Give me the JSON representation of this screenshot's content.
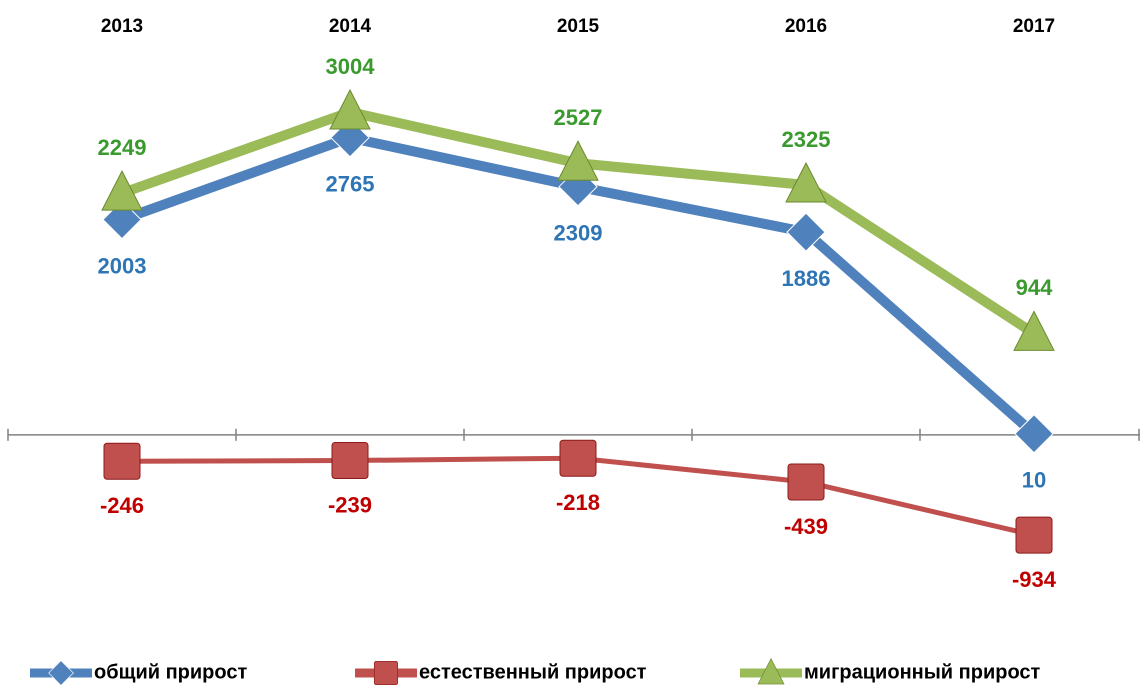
{
  "chart_data": {
    "type": "line",
    "categories": [
      "2013",
      "2014",
      "2015",
      "2016",
      "2017"
    ],
    "series": [
      {
        "name": "общий прирост",
        "color": "#4f81bd",
        "values": [
          2003,
          2765,
          2309,
          1886,
          10
        ]
      },
      {
        "name": "естественный прирост",
        "color": "#c0504d",
        "values": [
          -246,
          -239,
          -218,
          -439,
          -934
        ]
      },
      {
        "name": "миграционный прирост",
        "color": "#9bbb59",
        "values": [
          2249,
          3004,
          2527,
          2325,
          944
        ]
      }
    ],
    "ylim": [
      -1500,
      4000
    ]
  }
}
